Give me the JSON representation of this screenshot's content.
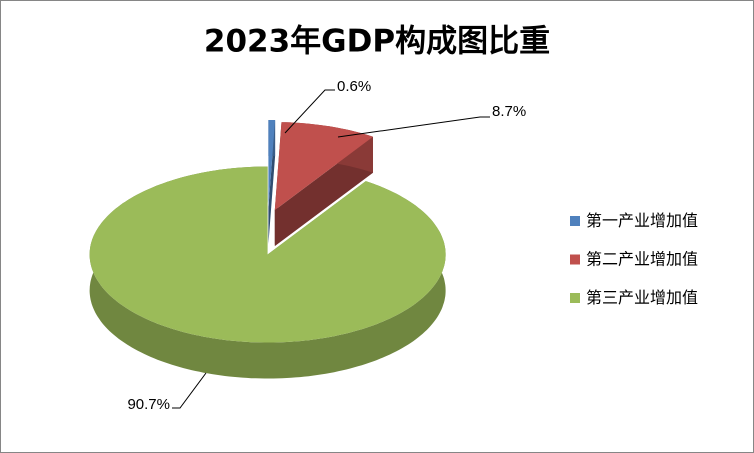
{
  "chart_data": {
    "type": "pie",
    "title": "2023年GDP构成图比重",
    "categories": [
      "第一产业增加值",
      "第二产业增加值",
      "第三产业增加值"
    ],
    "values": [
      0.6,
      8.7,
      90.7
    ],
    "value_labels": [
      "0.6%",
      "8.7%",
      "90.7%"
    ],
    "colors": [
      "#4f81bd",
      "#c0504d",
      "#9bbb59"
    ],
    "legend": "right"
  }
}
